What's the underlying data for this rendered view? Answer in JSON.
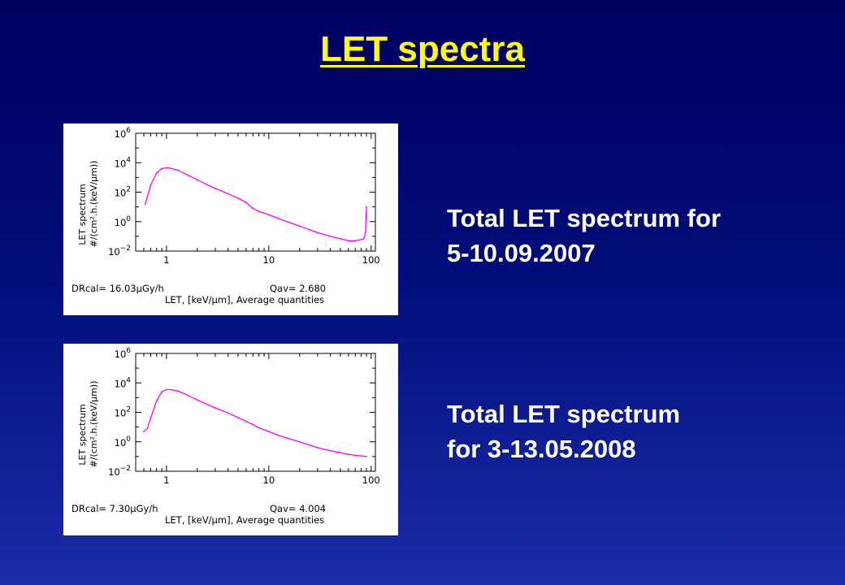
{
  "slide": {
    "title": "LET spectra"
  },
  "captions": [
    {
      "line1": "Total LET spectrum for",
      "line2": "5-10.09.2007"
    },
    {
      "line1": "Total LET spectrum",
      "line2": "for 3-13.05.2008"
    }
  ],
  "colors": {
    "title": "#ffff00",
    "caption": "#ffffff",
    "series": "#ff00ff",
    "background_top": "#000060",
    "background_bottom": "#1a2ca8"
  },
  "chart_data": [
    {
      "type": "line",
      "x_scale": "log",
      "y_scale": "log",
      "xlim": [
        0.5,
        110
      ],
      "ylim": [
        0.01,
        1000000
      ],
      "x_ticks": [
        "1",
        "10",
        "100"
      ],
      "y_tick_exponents": [
        "6",
        "4",
        "2",
        "0",
        "−2"
      ],
      "ylabel_line1": "LET spectrum",
      "ylabel_line2": "#/(cm².h.(keV/μm))",
      "xlabel": "LET, [keV/μm],  Average quantities",
      "stat_left": "DRcal=  16.03μGy/h",
      "stat_right": "Qav= 2.680",
      "series": [
        {
          "x": [
            0.62,
            0.7,
            0.8,
            0.9,
            1.0,
            1.1,
            1.3,
            1.6,
            2.0,
            2.5,
            3.0,
            4.0,
            5.0,
            6.0,
            7.0,
            8.0,
            10.0,
            12.0,
            15.0,
            20.0,
            25.0,
            30.0,
            40.0,
            50.0,
            60.0,
            70.0,
            80.0,
            85.0,
            88.0,
            90.0
          ],
          "y": [
            15,
            300,
            2000,
            4000,
            4500,
            4200,
            3000,
            1500,
            700,
            320,
            180,
            80,
            40,
            20,
            8,
            5,
            3,
            1.8,
            1.0,
            0.5,
            0.28,
            0.18,
            0.1,
            0.07,
            0.05,
            0.05,
            0.06,
            0.07,
            0.2,
            10
          ]
        }
      ]
    },
    {
      "type": "line",
      "x_scale": "log",
      "y_scale": "log",
      "xlim": [
        0.5,
        110
      ],
      "ylim": [
        0.01,
        1000000
      ],
      "x_ticks": [
        "1",
        "10",
        "100"
      ],
      "y_tick_exponents": [
        "6",
        "4",
        "2",
        "0",
        "−2"
      ],
      "ylabel_line1": "LET spectrum",
      "ylabel_line2": "#/(cm².h.(keV/μm))",
      "xlabel": "LET, [keV/μm],  Average quantities",
      "stat_left": "DRcal=   7.30μGy/h",
      "stat_right": "Qav= 4.004",
      "series": [
        {
          "x": [
            0.6,
            0.65,
            0.7,
            0.8,
            0.9,
            1.0,
            1.1,
            1.3,
            1.6,
            2.0,
            2.5,
            3.0,
            4.0,
            5.0,
            6.0,
            7.0,
            8.0,
            10.0,
            12.0,
            15.0,
            20.0,
            25.0,
            30.0,
            40.0,
            50.0,
            60.0,
            70.0,
            80.0,
            90.0
          ],
          "y": [
            5,
            8,
            40,
            600,
            2500,
            3500,
            3500,
            2800,
            1500,
            700,
            350,
            200,
            90,
            45,
            24,
            15,
            9,
            5,
            3,
            1.8,
            1.0,
            0.6,
            0.4,
            0.25,
            0.18,
            0.14,
            0.12,
            0.11,
            0.1
          ]
        }
      ]
    }
  ]
}
